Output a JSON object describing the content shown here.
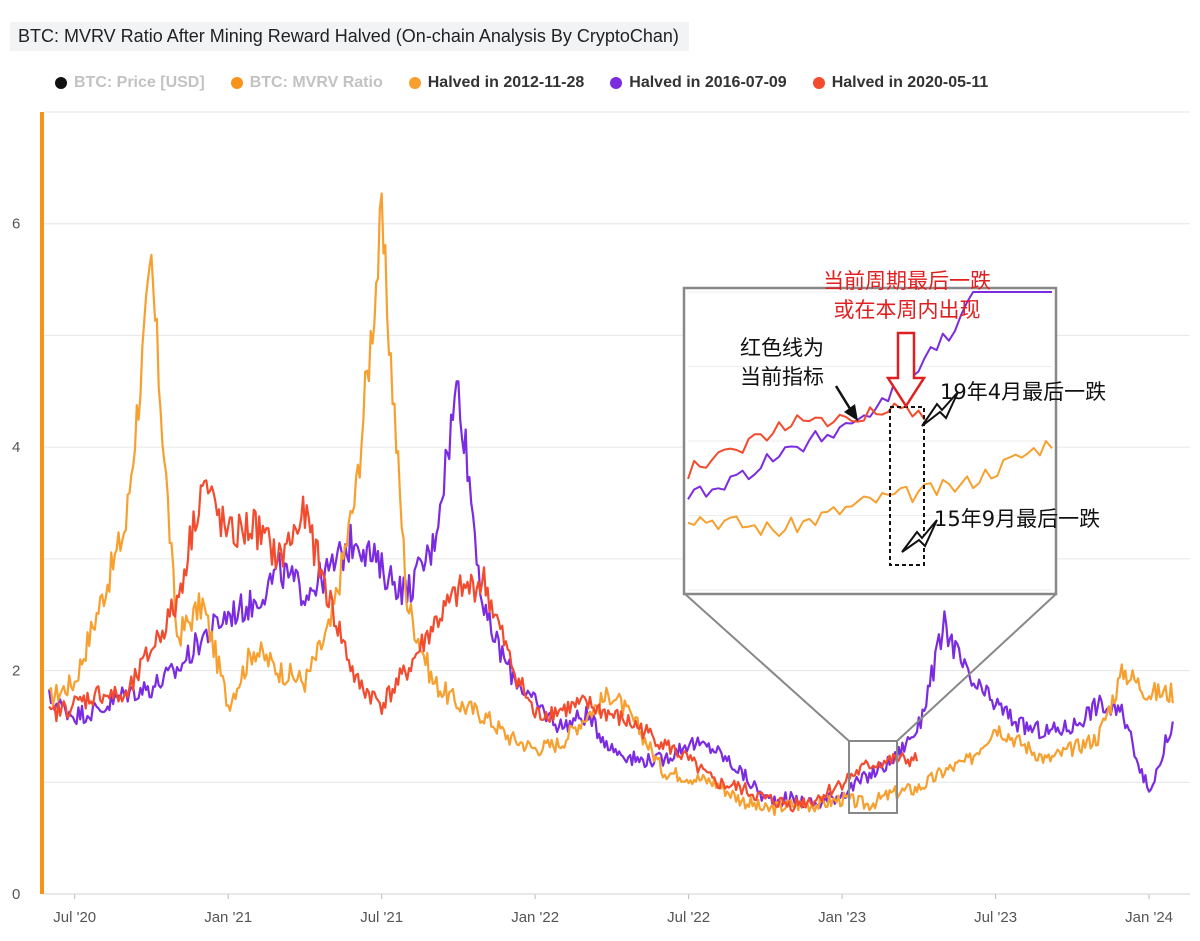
{
  "title": "BTC: MVRV Ratio After Mining Reward Halved (On-chain Analysis By CryptoChan)",
  "legend": [
    {
      "label": "BTC: Price [USD]",
      "color": "#111111",
      "active": false
    },
    {
      "label": "BTC: MVRV Ratio",
      "color": "#f7931a",
      "active": false
    },
    {
      "label": "Halved in 2012-11-28",
      "color": "#f7a030",
      "active": true
    },
    {
      "label": "Halved in 2016-07-09",
      "color": "#7b2be0",
      "active": true
    },
    {
      "label": "Halved in 2020-05-11",
      "color": "#f24b2e",
      "active": true
    }
  ],
  "annotations": {
    "current_cycle_l1": "当前周期最后一跌",
    "current_cycle_l2": "或在本周内出现",
    "red_line_l1": "红色线为",
    "red_line_l2": "当前指标",
    "apr19": "19年4月最后一跌",
    "sep15": "15年9月最后一跌"
  },
  "chart_data": {
    "type": "line",
    "xlabel": "",
    "ylabel": "",
    "ylim": [
      0,
      7
    ],
    "grid": true,
    "legend_position": "top",
    "x_ticks": [
      "Jul '20",
      "Jan '21",
      "Jul '21",
      "Jan '22",
      "Jul '22",
      "Jan '23",
      "Jul '23",
      "Jan '24"
    ],
    "y_ticks": [
      "0",
      "2",
      "4",
      "6"
    ],
    "x": [
      "2020-06",
      "2020-07",
      "2020-08",
      "2020-09",
      "2020-10",
      "2020-11",
      "2020-12",
      "2021-01",
      "2021-02",
      "2021-03",
      "2021-04",
      "2021-05",
      "2021-06",
      "2021-07",
      "2021-08",
      "2021-09",
      "2021-10",
      "2021-11",
      "2021-12",
      "2022-01",
      "2022-02",
      "2022-03",
      "2022-04",
      "2022-05",
      "2022-06",
      "2022-07",
      "2022-08",
      "2022-09",
      "2022-10",
      "2022-11",
      "2022-12",
      "2023-01",
      "2023-02",
      "2023-03",
      "2023-04",
      "2023-05",
      "2023-06",
      "2023-07",
      "2023-08",
      "2023-09",
      "2023-10",
      "2023-11",
      "2023-12",
      "2024-01",
      "2024-02"
    ],
    "series": [
      {
        "name": "Halved in 2012-11-28",
        "color": "#f7a030",
        "values": [
          1.75,
          1.9,
          2.6,
          3.3,
          5.6,
          2.3,
          2.6,
          1.7,
          2.2,
          2.0,
          1.9,
          2.4,
          3.6,
          6.0,
          2.6,
          1.9,
          1.7,
          1.6,
          1.4,
          1.3,
          1.35,
          1.6,
          1.8,
          1.5,
          1.1,
          1.05,
          1.0,
          0.85,
          0.75,
          0.8,
          0.8,
          0.85,
          0.8,
          0.9,
          0.95,
          1.1,
          1.2,
          1.5,
          1.35,
          1.2,
          1.3,
          1.4,
          2.0,
          1.8,
          null
        ]
      },
      {
        "name": "Halved in 2016-07-09",
        "color": "#7b2be0",
        "values": [
          1.75,
          1.6,
          1.65,
          1.8,
          1.85,
          2.0,
          2.3,
          2.5,
          2.6,
          2.9,
          2.7,
          2.9,
          3.2,
          2.9,
          2.7,
          3.1,
          4.6,
          2.5,
          2.0,
          1.7,
          1.5,
          1.6,
          1.3,
          1.2,
          1.2,
          1.35,
          1.3,
          1.1,
          0.85,
          0.85,
          0.8,
          0.9,
          1.05,
          1.2,
          1.5,
          2.4,
          1.9,
          1.7,
          1.5,
          1.45,
          1.5,
          1.7,
          1.6,
          0.9,
          1.6
        ]
      },
      {
        "name": "Halved in 2020-05-11",
        "color": "#f24b2e",
        "values": [
          1.6,
          1.7,
          1.8,
          1.75,
          2.2,
          2.6,
          3.7,
          3.2,
          3.3,
          3.0,
          3.4,
          2.6,
          1.9,
          1.7,
          2.0,
          2.4,
          2.7,
          2.8,
          2.1,
          1.6,
          1.65,
          1.7,
          1.6,
          1.5,
          1.35,
          1.2,
          1.0,
          0.95,
          0.85,
          0.8,
          0.85,
          1.0,
          1.15,
          1.2,
          null,
          null,
          null,
          null,
          null,
          null,
          null,
          null,
          null,
          null,
          null
        ]
      }
    ]
  }
}
